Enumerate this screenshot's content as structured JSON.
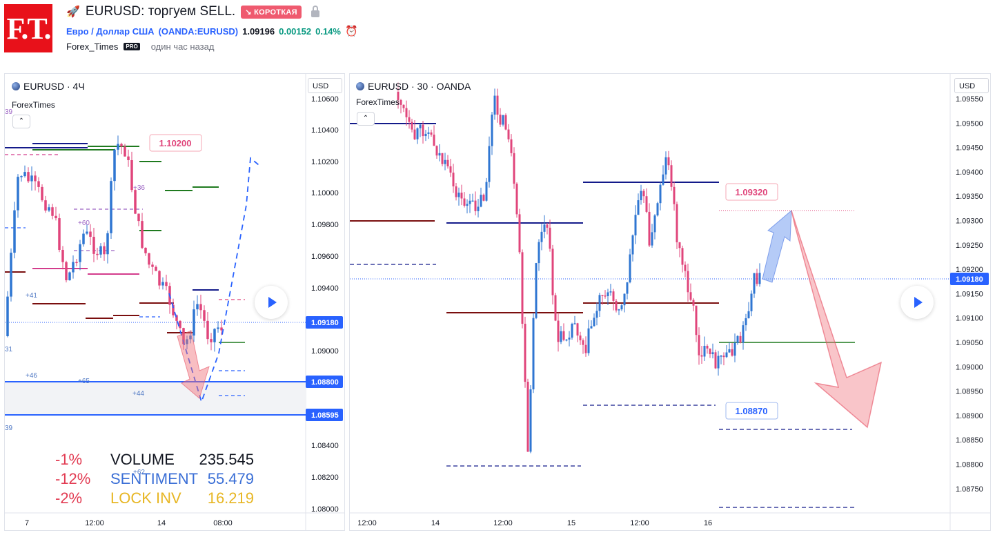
{
  "header": {
    "logo_text": "F.T.",
    "title": "EURUSD: торгуем SELL.",
    "badge": "↘ КОРОТКАЯ",
    "symbol_name": "Евро / Доллар США",
    "symbol_code": "(OANDA:EURUSD)",
    "price": "1.09196",
    "change": "0.00152",
    "change_pct": "0.14%",
    "author": "Forex_Times",
    "pro_badge": "PRO",
    "time_ago": "один час назад"
  },
  "colors": {
    "brand_red": "#e8111a",
    "bull": "#2f76d2",
    "bear": "#e0457b",
    "accent_blue": "#2962ff",
    "short_badge": "#ef5a6f",
    "positive": "#089981"
  },
  "left_chart": {
    "title": "EURUSD · 4Ч",
    "author": "ForexTimes",
    "currency": "USD",
    "price_labels": [
      "1.10600",
      "1.10400",
      "1.10200",
      "1.10000",
      "1.09800",
      "1.09600",
      "1.09400",
      "1.09000",
      "1.08400",
      "1.08200",
      "1.08000"
    ],
    "current_price": "1.09180",
    "level_1": "1.08800",
    "level_2": "1.08595",
    "callout": "1.10200",
    "time_labels": [
      "7",
      "12:00",
      "14",
      "08:00"
    ],
    "small_labels": {
      "a": "+36",
      "b": "+60",
      "c": "+41",
      "d": "+46",
      "e": "+65",
      "f": "+44",
      "g": "+62",
      "h": "39",
      "i": "31",
      "j": "39"
    },
    "stats": [
      {
        "pct": "-1%",
        "label": "VOLUME",
        "value": "235.545",
        "color": "#131722"
      },
      {
        "pct": "-12%",
        "label": "SENTIMENT",
        "value": "55.479",
        "color": "#3b6fd6"
      },
      {
        "pct": "-2%",
        "label": "LOCK INV",
        "value": "16.219",
        "color": "#e7b623"
      }
    ]
  },
  "right_chart": {
    "title": "EURUSD · 30 · OANDA",
    "author": "ForexTimes",
    "currency": "USD",
    "price_labels": [
      "1.09550",
      "1.09500",
      "1.09450",
      "1.09400",
      "1.09350",
      "1.09300",
      "1.09250",
      "1.09200",
      "1.09150",
      "1.09100",
      "1.09050",
      "1.09000",
      "1.08950",
      "1.08900",
      "1.08850",
      "1.08800",
      "1.08750"
    ],
    "current_price": "1.09180",
    "callout_top": "1.09320",
    "callout_bottom": "1.08870",
    "time_labels": [
      "12:00",
      "14",
      "12:00",
      "15",
      "12:00",
      "16"
    ]
  }
}
